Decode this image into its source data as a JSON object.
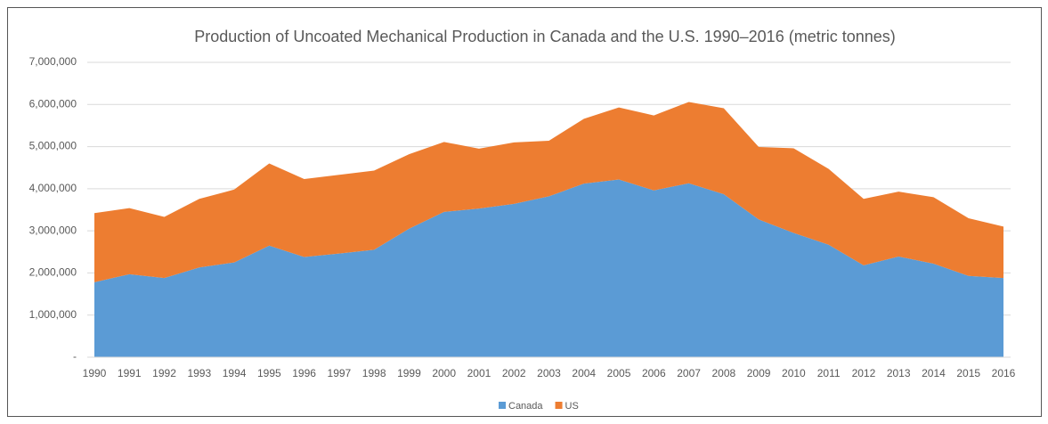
{
  "chart_data": {
    "type": "stacked_area",
    "title": "Production of Uncoated Mechanical Production in Canada and the U.S. 1990–2016 (metric tonnes)",
    "categories": [
      "1990",
      "1991",
      "1992",
      "1993",
      "1994",
      "1995",
      "1996",
      "1997",
      "1998",
      "1999",
      "2000",
      "2001",
      "2002",
      "2003",
      "2004",
      "2005",
      "2006",
      "2007",
      "2008",
      "2009",
      "2010",
      "2011",
      "2012",
      "2013",
      "2014",
      "2015",
      "2016"
    ],
    "series": [
      {
        "name": "Canada",
        "color": "#5b9bd5",
        "values": [
          1780000,
          1970000,
          1880000,
          2130000,
          2250000,
          2650000,
          2380000,
          2460000,
          2550000,
          3050000,
          3450000,
          3530000,
          3640000,
          3820000,
          4120000,
          4220000,
          3960000,
          4130000,
          3870000,
          3270000,
          2950000,
          2670000,
          2180000,
          2390000,
          2220000,
          1930000,
          1880000
        ]
      },
      {
        "name": "US",
        "color": "#ed7d31",
        "values": [
          1640000,
          1570000,
          1450000,
          1630000,
          1730000,
          1950000,
          1850000,
          1870000,
          1880000,
          1770000,
          1660000,
          1420000,
          1460000,
          1320000,
          1540000,
          1710000,
          1780000,
          1930000,
          2040000,
          1720000,
          2010000,
          1800000,
          1580000,
          1540000,
          1580000,
          1370000,
          1220000
        ]
      }
    ],
    "ylim": [
      0,
      7000000
    ],
    "yticks": [
      {
        "value": 0,
        "label": "-"
      },
      {
        "value": 1000000,
        "label": "1,000,000"
      },
      {
        "value": 2000000,
        "label": "2,000,000"
      },
      {
        "value": 3000000,
        "label": "3,000,000"
      },
      {
        "value": 4000000,
        "label": "4,000,000"
      },
      {
        "value": 5000000,
        "label": "5,000,000"
      },
      {
        "value": 6000000,
        "label": "6,000,000"
      },
      {
        "value": 7000000,
        "label": "7,000,000"
      }
    ],
    "grid": true,
    "legend": "bottom"
  }
}
